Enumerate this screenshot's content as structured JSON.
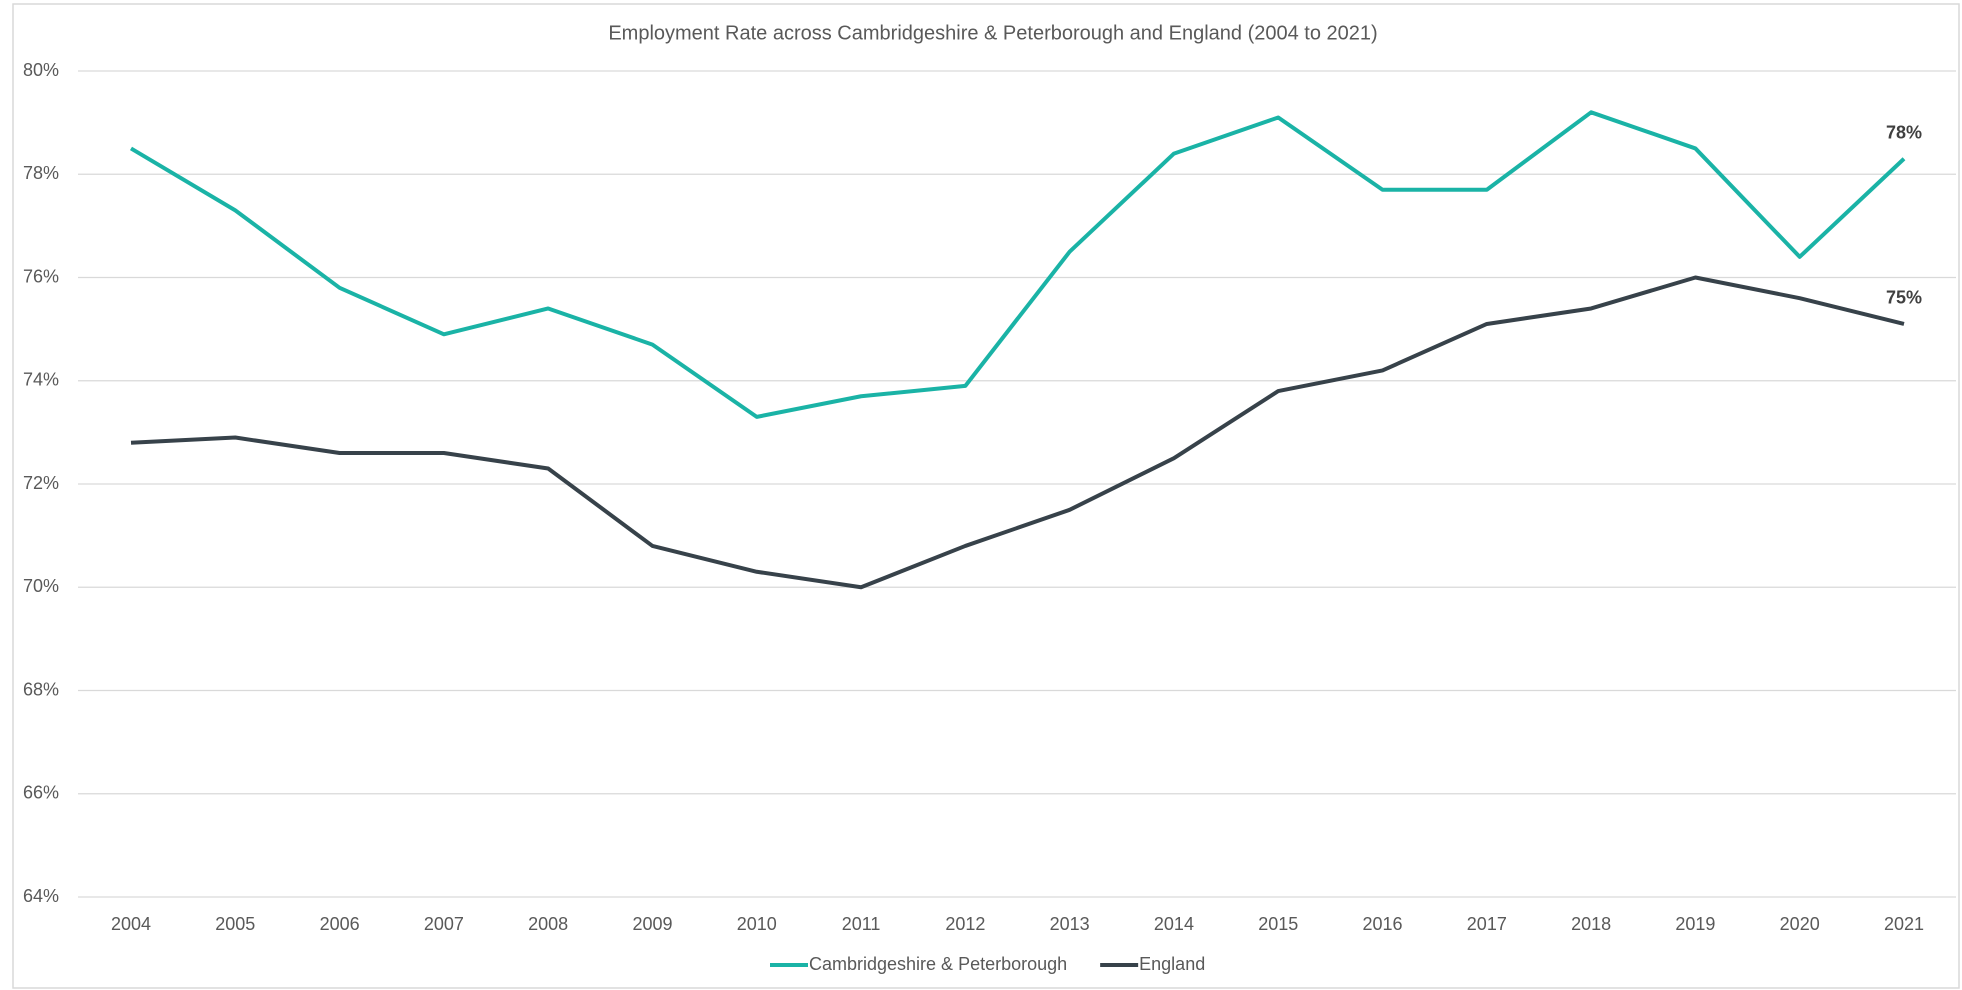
{
  "chart_data": {
    "type": "line",
    "title": "Employment Rate across Cambridgeshire & Peterborough and England (2004 to 2021)",
    "categories": [
      "2004",
      "2005",
      "2006",
      "2007",
      "2008",
      "2009",
      "2010",
      "2011",
      "2012",
      "2013",
      "2014",
      "2015",
      "2016",
      "2017",
      "2018",
      "2019",
      "2020",
      "2021"
    ],
    "series": [
      {
        "name": "Cambridgeshire & Peterborough",
        "color": "#1ab3a6",
        "values": [
          78.5,
          77.3,
          75.8,
          74.9,
          75.4,
          74.7,
          73.3,
          73.7,
          73.9,
          76.5,
          78.4,
          79.1,
          77.7,
          77.7,
          79.2,
          78.5,
          76.4,
          78.3
        ],
        "value_labels": [
          null,
          null,
          null,
          null,
          null,
          null,
          null,
          null,
          null,
          null,
          null,
          null,
          null,
          null,
          null,
          null,
          null,
          "78%"
        ]
      },
      {
        "name": "England",
        "color": "#37424a",
        "values": [
          72.8,
          72.9,
          72.6,
          72.6,
          72.3,
          70.8,
          70.3,
          70.0,
          70.8,
          71.5,
          72.5,
          73.8,
          74.2,
          75.1,
          75.4,
          76.0,
          75.6,
          75.1
        ],
        "value_labels": [
          null,
          null,
          null,
          null,
          null,
          null,
          null,
          null,
          null,
          null,
          null,
          null,
          null,
          null,
          null,
          null,
          null,
          "75%"
        ]
      }
    ],
    "ylim": [
      64,
      80
    ],
    "yticks": [
      {
        "value": 64,
        "label": "64%"
      },
      {
        "value": 66,
        "label": "66%"
      },
      {
        "value": 68,
        "label": "68%"
      },
      {
        "value": 70,
        "label": "70%"
      },
      {
        "value": 72,
        "label": "72%"
      },
      {
        "value": 74,
        "label": "74%"
      },
      {
        "value": 76,
        "label": "76%"
      },
      {
        "value": 78,
        "label": "78%"
      },
      {
        "value": 80,
        "label": "80%"
      }
    ],
    "grid": true,
    "legend": "bottom"
  }
}
